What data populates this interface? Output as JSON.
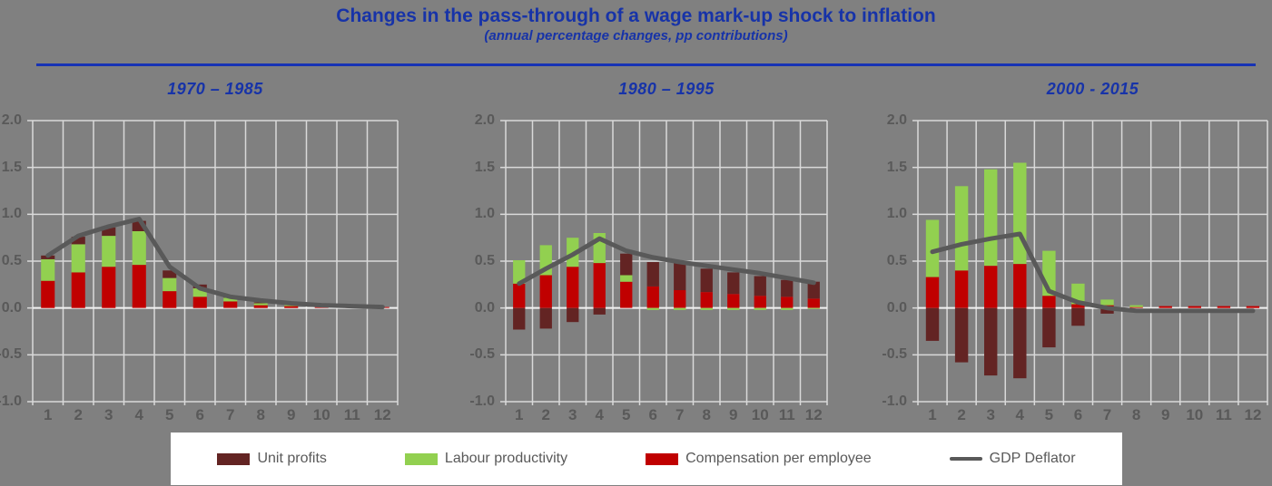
{
  "title": "Changes in the pass-through of a wage mark-up shock to inflation",
  "subtitle": "(annual percentage changes, pp contributions)",
  "colors": {
    "background": "#808080",
    "title_blue": "#1733A8",
    "divider_blue": "#1733B5",
    "axis_text": "#595959",
    "gridline": "#D9D9D9",
    "zero_line": "#F2F2F2",
    "legend_bg": "#FFFFFF",
    "unit_profits": "#632423",
    "labour_productivity": "#92D050",
    "compensation_per_employee": "#C00000",
    "gdp_deflator": "#595959"
  },
  "legend": {
    "items": [
      {
        "label": "Unit profits",
        "swatch": "bar",
        "color": "#632423"
      },
      {
        "label": "Labour productivity",
        "swatch": "bar",
        "color": "#92D050"
      },
      {
        "label": "Compensation per employee",
        "swatch": "bar",
        "color": "#C00000"
      },
      {
        "label": "GDP Deflator",
        "swatch": "line",
        "color": "#595959"
      }
    ]
  },
  "chart_data": [
    {
      "type": "bar",
      "stacked": true,
      "title": "1970 – 1985",
      "categories": [
        "1",
        "2",
        "3",
        "4",
        "5",
        "6",
        "7",
        "8",
        "9",
        "10",
        "11",
        "12"
      ],
      "ylim": [
        -1.0,
        2.0
      ],
      "yticks": [
        2.0,
        1.5,
        1.0,
        0.5,
        0.0,
        -0.5,
        -1.0
      ],
      "grid": true,
      "series": [
        {
          "name": "Compensation per employee",
          "color": "#C00000",
          "values": [
            0.29,
            0.38,
            0.44,
            0.46,
            0.18,
            0.12,
            0.07,
            0.03,
            0.02,
            0.01,
            0.01,
            0.01
          ]
        },
        {
          "name": "Labour productivity",
          "color": "#92D050",
          "values": [
            0.23,
            0.3,
            0.33,
            0.36,
            0.14,
            0.09,
            0.04,
            0.02,
            0.01,
            0.0,
            0.0,
            0.0
          ]
        },
        {
          "name": "Unit profits",
          "color": "#632423",
          "values": [
            0.04,
            0.08,
            0.09,
            0.11,
            0.08,
            0.04,
            0.02,
            0.01,
            0.0,
            0.0,
            0.0,
            0.0
          ]
        }
      ],
      "line": {
        "name": "GDP Deflator",
        "color": "#595959",
        "values": [
          0.56,
          0.77,
          0.87,
          0.95,
          0.44,
          0.21,
          0.12,
          0.08,
          0.05,
          0.03,
          0.02,
          0.01
        ]
      }
    },
    {
      "type": "bar",
      "stacked": true,
      "title": "1980 – 1995",
      "categories": [
        "1",
        "2",
        "3",
        "4",
        "5",
        "6",
        "7",
        "8",
        "9",
        "10",
        "11",
        "12"
      ],
      "ylim": [
        -1.0,
        2.0
      ],
      "yticks": [
        2.0,
        1.5,
        1.0,
        0.5,
        0.0,
        -0.5,
        -1.0
      ],
      "grid": true,
      "series": [
        {
          "name": "Compensation per employee",
          "color": "#C00000",
          "values": [
            0.26,
            0.35,
            0.44,
            0.48,
            0.28,
            0.23,
            0.19,
            0.17,
            0.15,
            0.13,
            0.12,
            0.1
          ]
        },
        {
          "name": "Labour productivity",
          "color": "#92D050",
          "values": [
            0.25,
            0.32,
            0.31,
            0.32,
            0.07,
            -0.02,
            -0.02,
            -0.02,
            -0.02,
            -0.02,
            -0.02,
            -0.01
          ]
        },
        {
          "name": "Unit profits",
          "color": "#632423",
          "values": [
            -0.23,
            -0.22,
            -0.15,
            -0.07,
            0.23,
            0.26,
            0.31,
            0.25,
            0.23,
            0.21,
            0.18,
            0.18
          ]
        }
      ],
      "line": {
        "name": "GDP Deflator",
        "color": "#595959",
        "values": [
          0.26,
          0.42,
          0.57,
          0.74,
          0.61,
          0.54,
          0.49,
          0.45,
          0.41,
          0.37,
          0.32,
          0.27
        ]
      }
    },
    {
      "type": "bar",
      "stacked": true,
      "title": "2000 - 2015",
      "categories": [
        "1",
        "2",
        "3",
        "4",
        "5",
        "6",
        "7",
        "8",
        "9",
        "10",
        "11",
        "12"
      ],
      "ylim": [
        -1.0,
        2.0
      ],
      "yticks": [
        2.0,
        1.5,
        1.0,
        0.5,
        0.0,
        -0.5,
        -1.0
      ],
      "grid": true,
      "series": [
        {
          "name": "Compensation per employee",
          "color": "#C00000",
          "values": [
            0.33,
            0.4,
            0.45,
            0.47,
            0.13,
            0.04,
            0.03,
            0.01,
            0.02,
            0.02,
            0.02,
            0.02
          ]
        },
        {
          "name": "Labour productivity",
          "color": "#92D050",
          "values": [
            0.61,
            0.9,
            1.03,
            1.08,
            0.48,
            0.22,
            0.06,
            0.02,
            0.0,
            0.0,
            0.0,
            0.0
          ]
        },
        {
          "name": "Unit profits",
          "color": "#632423",
          "values": [
            -0.35,
            -0.58,
            -0.72,
            -0.75,
            -0.42,
            -0.19,
            -0.06,
            0.0,
            0.0,
            0.0,
            0.0,
            0.0
          ]
        }
      ],
      "line": {
        "name": "GDP Deflator",
        "color": "#595959",
        "values": [
          0.6,
          0.68,
          0.74,
          0.79,
          0.18,
          0.06,
          0.0,
          -0.03,
          -0.03,
          -0.03,
          -0.03,
          -0.03
        ]
      }
    }
  ]
}
